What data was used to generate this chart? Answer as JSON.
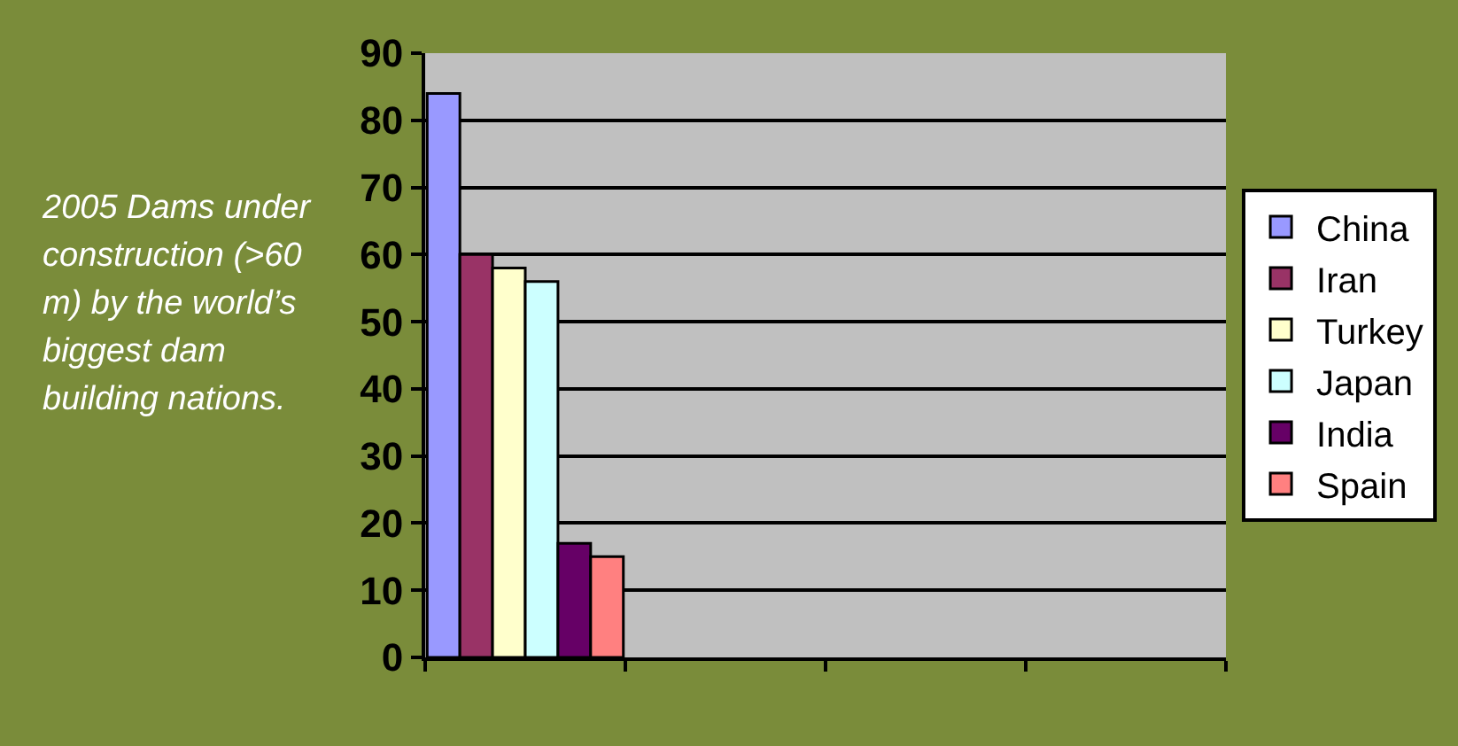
{
  "chart_data": {
    "type": "bar",
    "annotations": [
      "2005 Dams under construction (>60 m) by the world’s biggest dam building nations."
    ],
    "categories": [
      null,
      null,
      null,
      null
    ],
    "series": [
      {
        "name": "China",
        "color": "#9999ff",
        "values": [
          84,
          null,
          null,
          null
        ]
      },
      {
        "name": "Iran",
        "color": "#993366",
        "values": [
          60,
          null,
          null,
          null
        ]
      },
      {
        "name": "Turkey",
        "color": "#ffffcc",
        "values": [
          58,
          null,
          null,
          null
        ]
      },
      {
        "name": "Japan",
        "color": "#ccffff",
        "values": [
          56,
          null,
          null,
          null
        ]
      },
      {
        "name": "India",
        "color": "#660066",
        "values": [
          17,
          null,
          null,
          null
        ]
      },
      {
        "name": "Spain",
        "color": "#ff8080",
        "values": [
          15,
          null,
          null,
          null
        ]
      }
    ],
    "ylim": [
      0,
      90
    ],
    "yticks": [
      0,
      10,
      20,
      30,
      40,
      50,
      60,
      70,
      80,
      90
    ],
    "grid": "y",
    "legend": "right",
    "tick_labels": "y"
  }
}
